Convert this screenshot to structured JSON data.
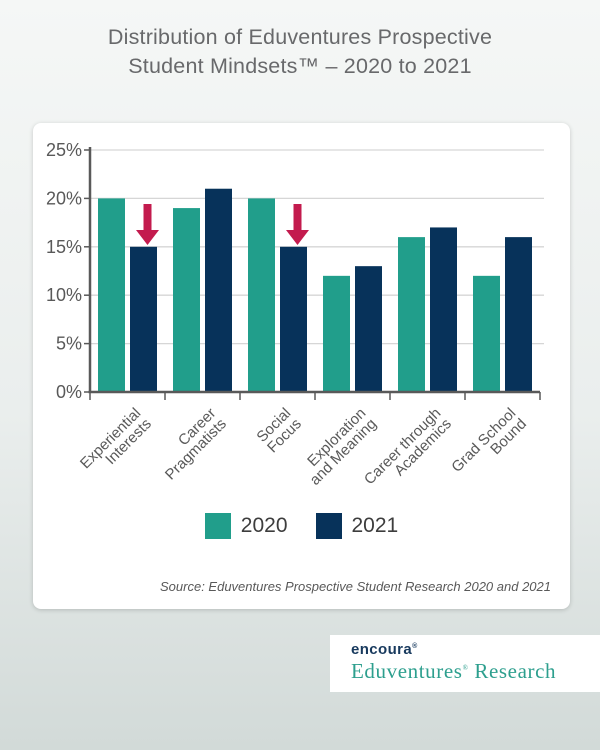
{
  "page": {
    "title_line1": "Distribution of Eduventures Prospective",
    "title_line2": "Student Mindsets™ – 2020 to 2021",
    "source": "Source: Eduventures Prospective Student Research 2020 and 2021"
  },
  "logo": {
    "brand": "encoura",
    "brand_mark": "®",
    "product": "Eduventures",
    "product_mark": "®",
    "suffix": "Research"
  },
  "colors": {
    "title_text": "#68696B",
    "axis_text": "#595959",
    "axis_line": "#595959",
    "gridline": "#D6D6D6",
    "card_background": "#FFFFFF",
    "page_background_top": "#F5F7F6",
    "page_background_bottom": "#D2DAD8",
    "logo_brand_navy": "#17395D",
    "logo_product_teal": "#2D9F8E"
  },
  "chart_data": {
    "type": "bar",
    "title": "Distribution of Eduventures Prospective Student Mindsets™ – 2020 to 2021",
    "categories": [
      "Experiential Interests",
      "Career Pragmatists",
      "Social Focus",
      "Exploration and Meaning",
      "Career through Academics",
      "Grad School Bound"
    ],
    "category_label_lines": [
      [
        "Experiential",
        "Interests"
      ],
      [
        "Career",
        "Pragmatists"
      ],
      [
        "Social",
        "Focus"
      ],
      [
        "Exploration",
        "and Meaning"
      ],
      [
        "Career through",
        "Academics"
      ],
      [
        "Grad School",
        "Bound"
      ]
    ],
    "series": [
      {
        "name": "2020",
        "color": "#219E8B",
        "values": [
          20,
          19,
          20,
          12,
          16,
          12
        ]
      },
      {
        "name": "2021",
        "color": "#07325A",
        "values": [
          15,
          21,
          15,
          13,
          17,
          16
        ]
      }
    ],
    "decline_arrows": {
      "category_indexes": [
        0,
        2
      ],
      "on_series": "2021",
      "color": "#C31B4E"
    },
    "ylim": [
      0,
      25
    ],
    "ytick_step": 5,
    "ytick_suffix": "%",
    "xlabel": "",
    "ylabel": "",
    "grid": true,
    "legend_position": "bottom"
  }
}
